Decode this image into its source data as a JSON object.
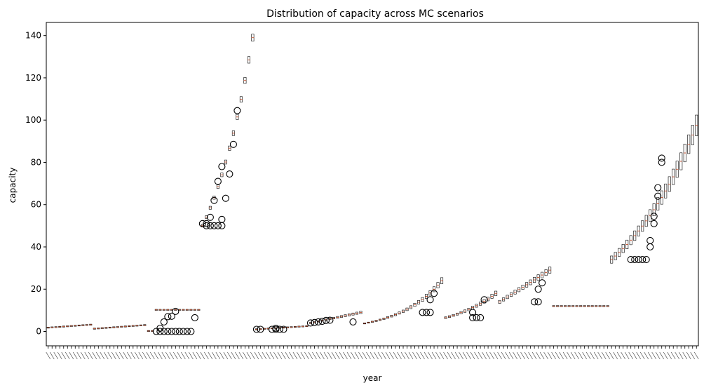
{
  "chart_data": {
    "type": "box",
    "title": "Distribution of capacity across MC scenarios",
    "xlabel": "year",
    "ylabel": "capacity",
    "ylim": [
      -6.8,
      146.2
    ],
    "yticks": [
      0,
      20,
      40,
      60,
      80,
      100,
      120,
      140
    ],
    "x_tick_count": 169,
    "x_tick_labels_legible": false,
    "grid": false,
    "legend": "none",
    "colors": {
      "box": "#000000",
      "median": "#c44e2a",
      "flier": "#000000"
    },
    "segments": [
      {
        "name": "segment-1",
        "years": 12,
        "start": 1.8,
        "end": 3.2,
        "shape": "linear",
        "spread": 0.05
      },
      {
        "name": "segment-2",
        "years": 14,
        "start": 1.3,
        "end": 3.0,
        "shape": "linear",
        "spread": 0.05
      },
      {
        "name": "segment-3",
        "years": 14,
        "start": 0.2,
        "end": 10.2,
        "shape": "jump",
        "spread": 0.02,
        "fliers": [
          [
            2,
            0
          ],
          [
            3,
            0
          ],
          [
            3,
            1.5
          ],
          [
            4,
            0
          ],
          [
            4,
            4.5
          ],
          [
            5,
            0
          ],
          [
            5,
            7
          ],
          [
            6,
            0
          ],
          [
            6,
            7.2
          ],
          [
            7,
            0
          ],
          [
            7,
            9.5
          ],
          [
            8,
            0
          ],
          [
            9,
            0
          ],
          [
            10,
            0
          ],
          [
            11,
            0
          ],
          [
            12,
            6.5
          ]
        ]
      },
      {
        "name": "segment-4",
        "years": 14,
        "start": 50,
        "end": 139,
        "shape": "exp",
        "spread": 0.012,
        "fliers": [
          [
            0,
            51
          ],
          [
            1,
            50
          ],
          [
            1,
            51
          ],
          [
            2,
            50
          ],
          [
            2,
            54
          ],
          [
            3,
            50
          ],
          [
            3,
            62
          ],
          [
            4,
            50
          ],
          [
            4,
            71
          ],
          [
            5,
            50
          ],
          [
            5,
            78
          ],
          [
            5,
            53
          ],
          [
            6,
            63
          ],
          [
            7,
            74.5
          ],
          [
            8,
            88.5
          ],
          [
            9,
            104.5
          ]
        ]
      },
      {
        "name": "segment-5",
        "years": 14,
        "start": 1.0,
        "end": 2.5,
        "shape": "linear",
        "spread": 0.05,
        "fliers": [
          [
            0,
            1
          ],
          [
            1,
            1
          ],
          [
            4,
            1
          ],
          [
            5,
            1
          ],
          [
            5,
            1.5
          ],
          [
            6,
            1
          ],
          [
            7,
            1
          ]
        ]
      },
      {
        "name": "segment-6",
        "years": 14,
        "start": 4.0,
        "end": 9.0,
        "shape": "linear",
        "spread": 0.06,
        "fliers": [
          [
            0,
            4
          ],
          [
            1,
            4.2
          ],
          [
            2,
            4.5
          ],
          [
            3,
            4.8
          ],
          [
            4,
            5.2
          ],
          [
            5,
            5.3
          ],
          [
            11,
            4.5
          ]
        ]
      },
      {
        "name": "segment-7",
        "years": 21,
        "start": 3.8,
        "end": 24.0,
        "shape": "exp",
        "spread": 0.06,
        "fliers": [
          [
            15,
            9
          ],
          [
            16,
            9
          ],
          [
            17,
            9
          ],
          [
            17,
            15
          ],
          [
            18,
            18
          ]
        ]
      },
      {
        "name": "segment-8",
        "years": 14,
        "start": 6.5,
        "end": 18.0,
        "shape": "exp",
        "spread": 0.06,
        "fliers": [
          [
            7,
            9
          ],
          [
            7,
            6.5
          ],
          [
            8,
            6.5
          ],
          [
            9,
            6.5
          ],
          [
            10,
            15
          ]
        ]
      },
      {
        "name": "segment-9",
        "years": 14,
        "start": 14.0,
        "end": 29.0,
        "shape": "linear",
        "spread": 0.05,
        "fliers": [
          [
            9,
            14
          ],
          [
            10,
            14
          ],
          [
            10,
            20
          ],
          [
            11,
            23
          ]
        ]
      },
      {
        "name": "segment-10",
        "years": 15,
        "start": 12.0,
        "end": 12.0,
        "shape": "linear",
        "spread": 0.0
      },
      {
        "name": "segment-11",
        "years": 23,
        "start": 34.0,
        "end": 97.5,
        "shape": "exp",
        "spread": 0.05,
        "fliers": [
          [
            5,
            34
          ],
          [
            6,
            34
          ],
          [
            7,
            34
          ],
          [
            8,
            34
          ],
          [
            9,
            34
          ],
          [
            10,
            40
          ],
          [
            10,
            43
          ],
          [
            11,
            51
          ],
          [
            11,
            54.5
          ],
          [
            12,
            64
          ],
          [
            12,
            68
          ],
          [
            13,
            80
          ],
          [
            13,
            82
          ]
        ]
      }
    ]
  }
}
